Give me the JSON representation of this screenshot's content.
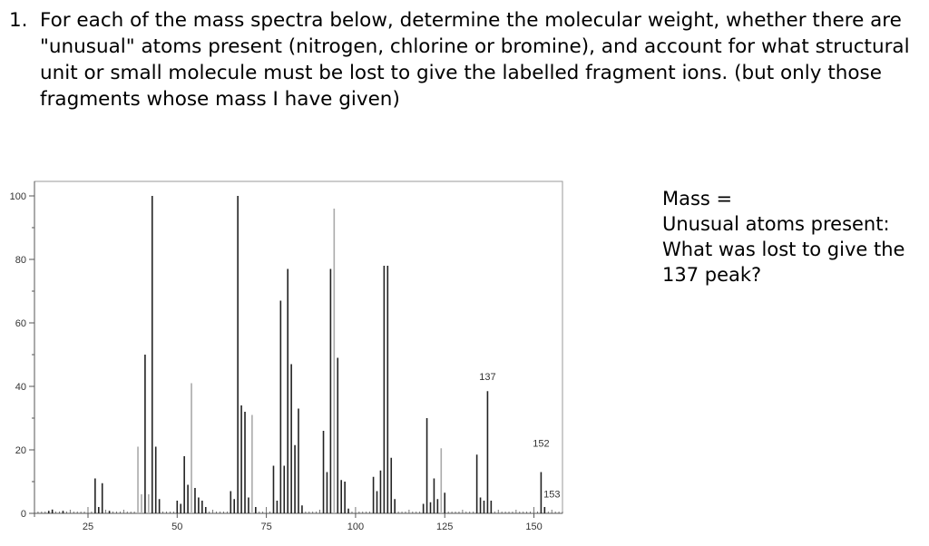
{
  "question": {
    "number": "1.",
    "text": "For each of the mass spectra below, determine the molecular weight, whether there are \"unusual\" atoms present (nitrogen, chlorine or bromine), and account for what structural unit or small molecule must be lost to give the labelled fragment ions. (but only those fragments whose mass I have given)"
  },
  "answers": {
    "mass": "Mass =",
    "unusual": "Unusual atoms present:",
    "lost_line1": "What was lost to give the",
    "lost_line2": "137 peak?"
  },
  "chart_data": {
    "type": "bar",
    "xlim": [
      10,
      158
    ],
    "ylim": [
      0,
      100
    ],
    "x_ticks": [
      25,
      50,
      75,
      100,
      125,
      150
    ],
    "y_ticks": [
      0,
      20,
      40,
      60,
      80,
      100
    ],
    "x_tick_labels": [
      "25",
      "50",
      "75",
      "100",
      "125",
      "150"
    ],
    "y_tick_labels": [
      "0",
      "20",
      "40",
      "60",
      "80",
      "100"
    ],
    "annotations": [
      {
        "text": "137",
        "x": 137,
        "y": 42
      },
      {
        "text": "152",
        "x": 152,
        "y": 21
      },
      {
        "text": "153",
        "x": 153,
        "y": 5
      }
    ],
    "peaks": [
      {
        "mz": 14,
        "i": 0.8
      },
      {
        "mz": 15,
        "i": 1.2
      },
      {
        "mz": 18,
        "i": 0.8
      },
      {
        "mz": 27,
        "i": 11
      },
      {
        "mz": 28,
        "i": 2
      },
      {
        "mz": 29,
        "i": 9.5
      },
      {
        "mz": 31,
        "i": 0.8
      },
      {
        "mz": 39,
        "i": 21
      },
      {
        "mz": 40,
        "i": 6
      },
      {
        "mz": 41,
        "i": 50
      },
      {
        "mz": 42,
        "i": 6
      },
      {
        "mz": 43,
        "i": 100
      },
      {
        "mz": 44,
        "i": 21
      },
      {
        "mz": 45,
        "i": 4.5
      },
      {
        "mz": 50,
        "i": 4
      },
      {
        "mz": 51,
        "i": 3
      },
      {
        "mz": 52,
        "i": 18
      },
      {
        "mz": 53,
        "i": 9
      },
      {
        "mz": 54,
        "i": 41
      },
      {
        "mz": 55,
        "i": 8
      },
      {
        "mz": 56,
        "i": 5
      },
      {
        "mz": 57,
        "i": 4
      },
      {
        "mz": 58,
        "i": 2
      },
      {
        "mz": 65,
        "i": 7
      },
      {
        "mz": 66,
        "i": 4.5
      },
      {
        "mz": 67,
        "i": 100
      },
      {
        "mz": 68,
        "i": 34
      },
      {
        "mz": 69,
        "i": 32
      },
      {
        "mz": 70,
        "i": 5
      },
      {
        "mz": 71,
        "i": 31
      },
      {
        "mz": 72,
        "i": 2
      },
      {
        "mz": 77,
        "i": 15
      },
      {
        "mz": 78,
        "i": 4
      },
      {
        "mz": 79,
        "i": 67
      },
      {
        "mz": 80,
        "i": 15
      },
      {
        "mz": 81,
        "i": 77
      },
      {
        "mz": 82,
        "i": 47
      },
      {
        "mz": 83,
        "i": 21.5
      },
      {
        "mz": 84,
        "i": 33
      },
      {
        "mz": 85,
        "i": 2.5
      },
      {
        "mz": 91,
        "i": 26
      },
      {
        "mz": 92,
        "i": 13
      },
      {
        "mz": 93,
        "i": 77
      },
      {
        "mz": 94,
        "i": 96
      },
      {
        "mz": 95,
        "i": 49
      },
      {
        "mz": 96,
        "i": 10.5
      },
      {
        "mz": 97,
        "i": 10
      },
      {
        "mz": 98,
        "i": 1.5
      },
      {
        "mz": 105,
        "i": 11.5
      },
      {
        "mz": 106,
        "i": 7
      },
      {
        "mz": 107,
        "i": 13.5
      },
      {
        "mz": 108,
        "i": 78
      },
      {
        "mz": 109,
        "i": 78
      },
      {
        "mz": 110,
        "i": 17.5
      },
      {
        "mz": 111,
        "i": 4.5
      },
      {
        "mz": 119,
        "i": 3
      },
      {
        "mz": 120,
        "i": 30
      },
      {
        "mz": 121,
        "i": 3.5
      },
      {
        "mz": 122,
        "i": 11
      },
      {
        "mz": 123,
        "i": 4.5
      },
      {
        "mz": 124,
        "i": 20.5
      },
      {
        "mz": 125,
        "i": 6.5
      },
      {
        "mz": 134,
        "i": 18.5
      },
      {
        "mz": 135,
        "i": 5
      },
      {
        "mz": 136,
        "i": 4
      },
      {
        "mz": 137,
        "i": 38.5
      },
      {
        "mz": 138,
        "i": 4
      },
      {
        "mz": 152,
        "i": 13
      },
      {
        "mz": 153,
        "i": 2
      }
    ],
    "colors": {
      "axis": "#555555",
      "frame": "#999999",
      "bar_dark": "#222222",
      "bar_light": "#aaaaaa",
      "text": "#333333"
    }
  }
}
